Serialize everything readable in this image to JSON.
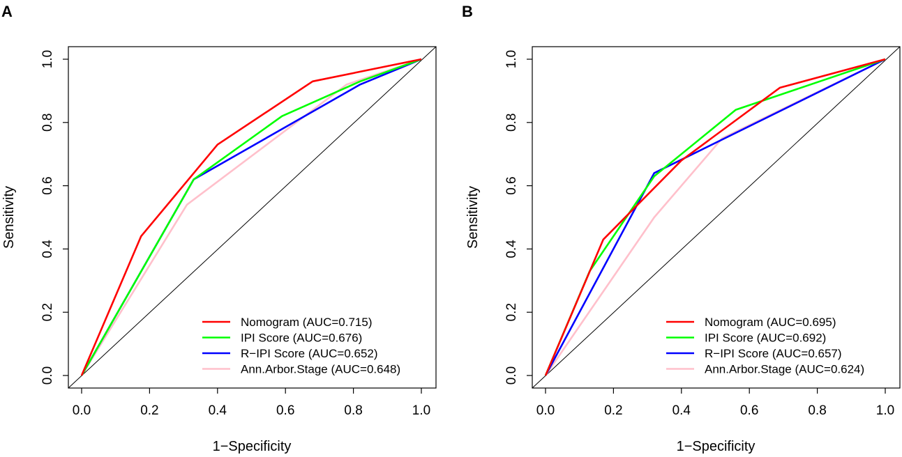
{
  "chart_data": [
    {
      "type": "line",
      "panel_label": "A",
      "title": "",
      "xlabel": "1−Specificity",
      "ylabel": "Sensitivity",
      "xlim": [
        0,
        1
      ],
      "ylim": [
        0,
        1
      ],
      "x_ticks": [
        "0.0",
        "0.2",
        "0.4",
        "0.6",
        "0.8",
        "1.0"
      ],
      "y_ticks": [
        "0.0",
        "0.2",
        "0.4",
        "0.6",
        "0.8",
        "1.0"
      ],
      "diagonal": true,
      "legend_position": "bottom-right",
      "series": [
        {
          "name": "Nomogram (AUC=0.715)",
          "color": "#ff0000",
          "x": [
            0,
            0.175,
            0.4,
            0.68,
            1.0
          ],
          "y": [
            0,
            0.44,
            0.73,
            0.93,
            1.0
          ]
        },
        {
          "name": "IPI Score (AUC=0.676)",
          "color": "#00ff00",
          "x": [
            0,
            0.33,
            0.59,
            0.82,
            1.0
          ],
          "y": [
            0,
            0.62,
            0.82,
            0.93,
            1.0
          ]
        },
        {
          "name": "R−IPI Score (AUC=0.652)",
          "color": "#0000ff",
          "x": [
            0,
            0.33,
            0.82,
            1.0
          ],
          "y": [
            0,
            0.62,
            0.92,
            1.0
          ]
        },
        {
          "name": "Ann.Arbor.Stage (AUC=0.648)",
          "color": "#ffc0cb",
          "x": [
            0,
            0.31,
            0.78,
            1.0
          ],
          "y": [
            0,
            0.54,
            0.92,
            1.0
          ]
        }
      ]
    },
    {
      "type": "line",
      "panel_label": "B",
      "title": "",
      "xlabel": "1−Specificity",
      "ylabel": "Sensitivity",
      "xlim": [
        0,
        1
      ],
      "ylim": [
        0,
        1
      ],
      "x_ticks": [
        "0.0",
        "0.2",
        "0.4",
        "0.6",
        "0.8",
        "1.0"
      ],
      "y_ticks": [
        "0.0",
        "0.2",
        "0.4",
        "0.6",
        "0.8",
        "1.0"
      ],
      "diagonal": true,
      "legend_position": "bottom-right",
      "series": [
        {
          "name": "Nomogram (AUC=0.695)",
          "color": "#ff0000",
          "x": [
            0,
            0.17,
            0.4,
            0.69,
            1.0
          ],
          "y": [
            0,
            0.43,
            0.68,
            0.91,
            1.0
          ]
        },
        {
          "name": "IPI Score (AUC=0.692)",
          "color": "#00ff00",
          "x": [
            0,
            0.13,
            0.32,
            0.56,
            1.0
          ],
          "y": [
            0,
            0.33,
            0.63,
            0.84,
            1.0
          ]
        },
        {
          "name": "R−IPI Score (AUC=0.657)",
          "color": "#0000ff",
          "x": [
            0,
            0.32,
            1.0
          ],
          "y": [
            0,
            0.64,
            1.0
          ]
        },
        {
          "name": "Ann.Arbor.Stage (AUC=0.624)",
          "color": "#ffc0cb",
          "x": [
            0,
            0.32,
            0.52,
            1.0
          ],
          "y": [
            0,
            0.5,
            0.75,
            1.0
          ]
        }
      ]
    }
  ]
}
